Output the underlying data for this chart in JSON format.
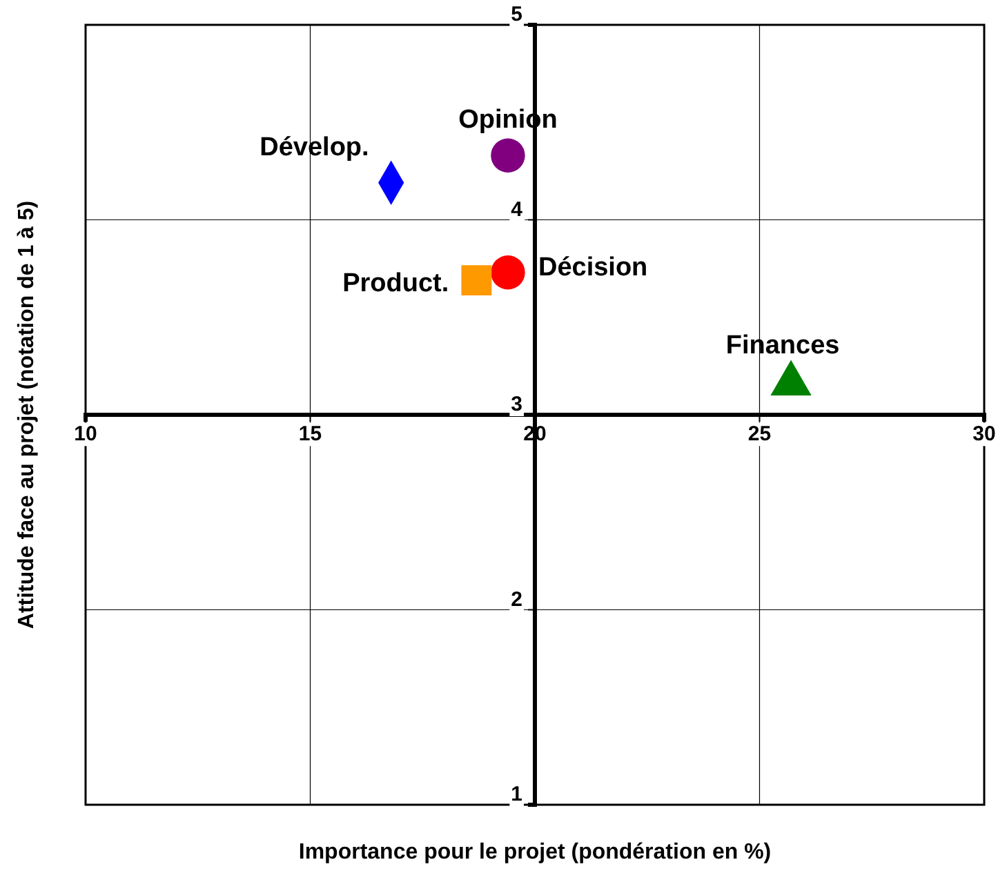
{
  "chart_data": {
    "type": "scatter",
    "xlabel": "Importance pour le projet (pondération en %)",
    "ylabel": "Attitude face au projet (notation de 1 à 5)",
    "xlim": [
      10,
      30
    ],
    "xticks": [
      10,
      15,
      20,
      25,
      30
    ],
    "ylim": [
      1,
      5
    ],
    "yticks": [
      1,
      2,
      3,
      4,
      5
    ],
    "grid": true,
    "series": [
      {
        "name": "Dévelop.",
        "color": "#0000ff",
        "marker": "diamond",
        "x": [
          16.8
        ],
        "values": [
          4.19
        ]
      },
      {
        "name": "Opinion",
        "color": "#800080",
        "marker": "circle",
        "x": [
          19.4
        ],
        "values": [
          4.33
        ]
      },
      {
        "name": "Décision",
        "color": "#ff0000",
        "marker": "circle",
        "x": [
          19.4
        ],
        "values": [
          3.73
        ]
      },
      {
        "name": "Product.",
        "color": "#ff9900",
        "marker": "square",
        "x": [
          18.7
        ],
        "values": [
          3.69
        ]
      },
      {
        "name": "Finances",
        "color": "#008000",
        "marker": "triangle",
        "x": [
          25.7
        ],
        "values": [
          3.16
        ]
      }
    ]
  }
}
